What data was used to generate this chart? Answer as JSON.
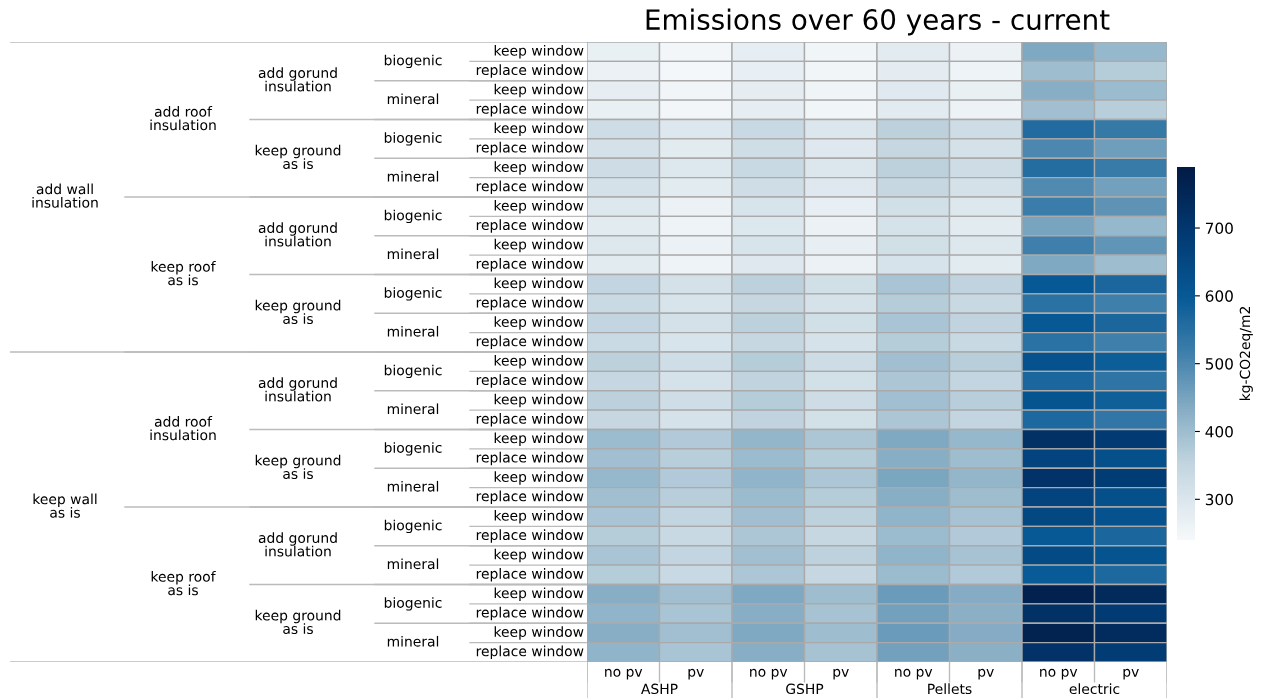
{
  "chart_data": {
    "type": "heatmap",
    "title": "Emissions over 60 years - current",
    "categories": [
      "no pv",
      "pv",
      "no pv",
      "pv",
      "no pv",
      "pv",
      "no pv",
      "pv"
    ],
    "y_categories": [
      "keep window",
      "replace window",
      "keep window",
      "replace window",
      "keep window",
      "replace window",
      "keep window",
      "replace window",
      "keep window",
      "replace window",
      "keep window",
      "replace window",
      "keep window",
      "replace window",
      "keep window",
      "replace window",
      "keep window",
      "replace window",
      "keep window",
      "replace window",
      "keep window",
      "replace window",
      "keep window",
      "replace window",
      "keep window",
      "replace window",
      "keep window",
      "replace window",
      "keep window",
      "replace window",
      "keep window",
      "replace window"
    ],
    "annotations": [
      "add wall\ninsulation",
      "keep wall\nas is",
      "add roof\ninsulation",
      "keep roof\nas is",
      "add roof\ninsulation",
      "keep roof\nas is",
      "add gorund\ninsulation",
      "keep ground\nas is",
      "add gorund\ninsulation",
      "keep ground\nas is",
      "add gorund\ninsulation",
      "keep ground\nas is",
      "add gorund\ninsulation",
      "keep ground\nas is",
      "biogenic",
      "mineral",
      "biogenic",
      "mineral",
      "biogenic",
      "mineral",
      "biogenic",
      "mineral",
      "biogenic",
      "mineral",
      "biogenic",
      "mineral",
      "biogenic",
      "mineral",
      "biogenic",
      "mineral",
      "ASHP",
      "GSHP",
      "Pellets",
      "electric"
    ],
    "cells": [
      [
        270,
        250,
        275,
        255,
        285,
        265,
        440,
        410
      ],
      [
        265,
        248,
        272,
        252,
        280,
        260,
        400,
        370
      ],
      [
        275,
        252,
        278,
        257,
        288,
        268,
        430,
        405
      ],
      [
        270,
        250,
        275,
        255,
        283,
        262,
        395,
        365
      ],
      [
        330,
        295,
        340,
        300,
        360,
        330,
        560,
        530
      ],
      [
        315,
        285,
        325,
        292,
        345,
        315,
        500,
        460
      ],
      [
        330,
        295,
        340,
        300,
        360,
        330,
        555,
        525
      ],
      [
        315,
        285,
        325,
        292,
        345,
        315,
        495,
        455
      ],
      [
        295,
        265,
        305,
        272,
        320,
        295,
        520,
        480
      ],
      [
        285,
        258,
        295,
        265,
        310,
        285,
        450,
        410
      ],
      [
        295,
        265,
        305,
        272,
        320,
        295,
        515,
        475
      ],
      [
        285,
        258,
        292,
        265,
        307,
        283,
        440,
        400
      ],
      [
        350,
        315,
        360,
        320,
        385,
        355,
        600,
        570
      ],
      [
        335,
        305,
        345,
        312,
        370,
        340,
        545,
        515
      ],
      [
        350,
        315,
        360,
        320,
        385,
        355,
        600,
        570
      ],
      [
        335,
        305,
        345,
        312,
        370,
        340,
        545,
        515
      ],
      [
        360,
        325,
        370,
        330,
        395,
        365,
        620,
        590
      ],
      [
        345,
        310,
        355,
        318,
        380,
        350,
        570,
        540
      ],
      [
        360,
        325,
        370,
        330,
        395,
        365,
        615,
        585
      ],
      [
        345,
        310,
        355,
        318,
        380,
        350,
        565,
        535
      ],
      [
        405,
        375,
        415,
        380,
        440,
        410,
        720,
        690
      ],
      [
        395,
        365,
        405,
        370,
        430,
        400,
        660,
        630
      ],
      [
        410,
        375,
        420,
        380,
        445,
        415,
        715,
        685
      ],
      [
        395,
        365,
        405,
        370,
        430,
        400,
        660,
        630
      ],
      [
        385,
        350,
        395,
        358,
        420,
        390,
        650,
        620
      ],
      [
        370,
        340,
        380,
        345,
        405,
        375,
        600,
        570
      ],
      [
        385,
        350,
        395,
        358,
        420,
        390,
        645,
        615
      ],
      [
        370,
        340,
        380,
        345,
        405,
        375,
        595,
        565
      ],
      [
        430,
        395,
        440,
        400,
        465,
        435,
        770,
        740
      ],
      [
        420,
        385,
        430,
        390,
        455,
        425,
        720,
        690
      ],
      [
        430,
        395,
        440,
        400,
        465,
        435,
        765,
        735
      ],
      [
        420,
        385,
        430,
        390,
        455,
        425,
        715,
        685
      ]
    ],
    "clim": [
      240,
      790
    ],
    "cticks": [
      300,
      400,
      500,
      600,
      700
    ],
    "clabel": "kg-CO2eq/m2"
  }
}
